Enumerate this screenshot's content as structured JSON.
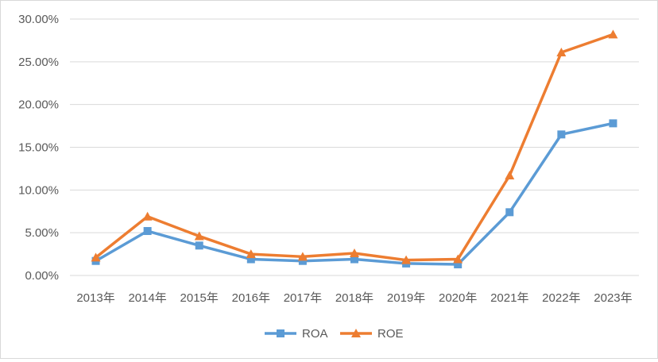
{
  "chart_data": {
    "type": "line",
    "title": "",
    "xlabel": "",
    "ylabel": "",
    "categories": [
      "2013年",
      "2014年",
      "2015年",
      "2016年",
      "2017年",
      "2018年",
      "2019年",
      "2020年",
      "2021年",
      "2022年",
      "2023年"
    ],
    "ylim": [
      0,
      0.3
    ],
    "yticks": [
      "0.00%",
      "5.00%",
      "10.00%",
      "15.00%",
      "20.00%",
      "25.00%",
      "30.00%"
    ],
    "grid": true,
    "legend_position": "bottom",
    "series": [
      {
        "name": "ROA",
        "color": "#5b9bd5",
        "marker": "square",
        "values": [
          0.017,
          0.052,
          0.035,
          0.019,
          0.017,
          0.019,
          0.014,
          0.013,
          0.074,
          0.165,
          0.178
        ]
      },
      {
        "name": "ROE",
        "color": "#ed7d31",
        "marker": "triangle",
        "values": [
          0.021,
          0.069,
          0.046,
          0.025,
          0.022,
          0.026,
          0.018,
          0.019,
          0.117,
          0.261,
          0.282
        ]
      }
    ]
  }
}
